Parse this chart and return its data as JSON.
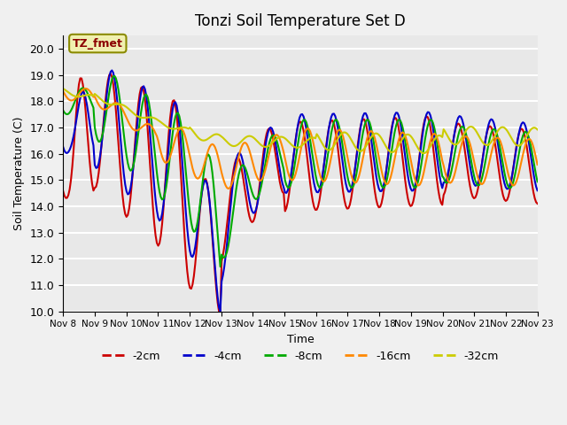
{
  "title": "Tonzi Soil Temperature Set D",
  "xlabel": "Time",
  "ylabel": "Soil Temperature (C)",
  "ylim": [
    10.0,
    20.5
  ],
  "yticks": [
    10.0,
    11.0,
    12.0,
    13.0,
    14.0,
    15.0,
    16.0,
    17.0,
    18.0,
    19.0,
    20.0
  ],
  "colors": {
    "-2cm": "#cc0000",
    "-4cm": "#0000cc",
    "-8cm": "#00aa00",
    "-16cm": "#ff8800",
    "-32cm": "#cccc00"
  },
  "legend_labels": [
    "-2cm",
    "-4cm",
    "-8cm",
    "-16cm",
    "-32cm"
  ],
  "annotation": "TZ_fmet",
  "annotation_color": "#8b0000",
  "annotation_bg": "#f0f0b0",
  "bg_color": "#e8e8e8",
  "plot_bg": "#e8e8e8",
  "n_points": 360,
  "x_start": 8,
  "x_end": 23,
  "xtick_positions": [
    8,
    9,
    10,
    11,
    12,
    13,
    14,
    15,
    16,
    17,
    18,
    19,
    20,
    21,
    22,
    23
  ],
  "xtick_labels": [
    "Nov 8",
    "Nov 9",
    "Nov 10",
    "Nov 11",
    "Nov 12",
    "Nov 13",
    "Nov 14",
    "Nov 15",
    "Nov 16",
    "Nov 17",
    "Nov 18",
    "Nov 19",
    "Nov 20",
    "Nov 21",
    "Nov 22",
    "Nov 23"
  ]
}
